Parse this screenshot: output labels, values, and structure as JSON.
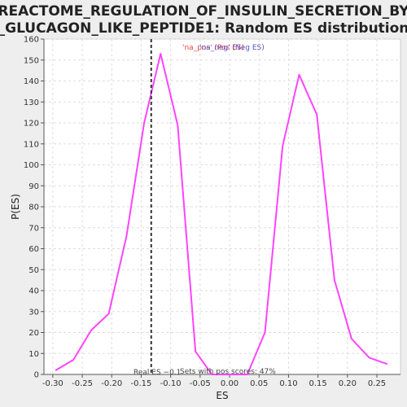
{
  "chart_data": {
    "type": "line",
    "title_lines": [
      "REACTOME_REGULATION_OF_INSULIN_SECRETION_BY",
      "_GLUCAGON_LIKE_PEPTIDE1: Random ES distribution"
    ],
    "xlabel": "ES",
    "ylabel": "P(ES)",
    "xlim": [
      -0.315,
      0.29
    ],
    "ylim": [
      0,
      160
    ],
    "x_ticks": [
      -0.3,
      -0.25,
      -0.2,
      -0.15,
      -0.1,
      -0.05,
      0.0,
      0.05,
      0.1,
      0.15,
      0.2,
      0.25
    ],
    "x_tick_labels": [
      "-0.30",
      "-0.25",
      "-0.20",
      "-0.15",
      "-0.10",
      "-0.05",
      "0.00",
      "0.05",
      "0.10",
      "0.15",
      "0.20",
      "0.25"
    ],
    "y_ticks": [
      0,
      10,
      20,
      30,
      40,
      50,
      60,
      70,
      80,
      90,
      100,
      110,
      120,
      130,
      140,
      150,
      160
    ],
    "grid": true,
    "series": [
      {
        "color": "#ff44ff",
        "x": [
          -0.295,
          -0.265,
          -0.235,
          -0.205,
          -0.175,
          -0.145,
          -0.117,
          -0.088,
          -0.058,
          -0.03,
          0.0,
          0.03,
          0.06,
          0.09,
          0.118,
          0.148,
          0.178,
          0.207,
          0.237,
          0.267
        ],
        "y": [
          2,
          7,
          21,
          29,
          66,
          120,
          153,
          119,
          11,
          0,
          0,
          0,
          20,
          109,
          143,
          124,
          45,
          17,
          8,
          5
        ]
      }
    ],
    "real_es": -0.133,
    "real_es_color": "#333333",
    "annotations": {
      "real_es_label": "Real ES −0.1",
      "pos_scores_label": "Sets with pos scores: 47%",
      "na_pos_label": "'na_pos' (Pos ES)",
      "na_neg_label": "'na_neg' (Neg ES)",
      "na_pos_color": "#ee4444",
      "na_neg_color": "#5555cc"
    }
  }
}
